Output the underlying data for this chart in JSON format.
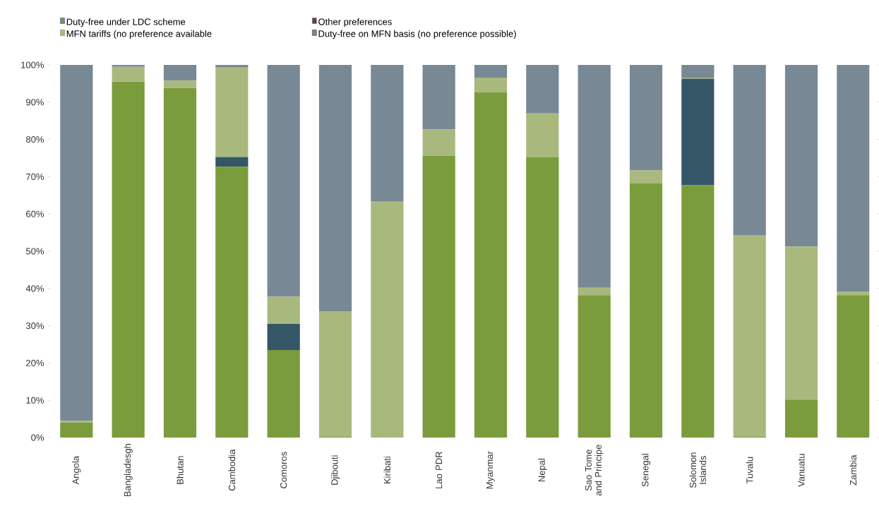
{
  "chart_data": {
    "type": "bar",
    "stacked": true,
    "categories": [
      "Angola",
      "Bangladesgh",
      "Bhutan",
      "Cambodia",
      "Comoros",
      "Djibouti",
      "Kiribati",
      "Lao PDR",
      "Myanmar",
      "Nepal",
      "Sao Tome and Principe",
      "Senegal",
      "Solomon Islands",
      "Tuvalu",
      "Vanuatu",
      "Zambia"
    ],
    "series": [
      {
        "name": "Duty-free under LDC scheme",
        "color": "#7a9c3c",
        "values": [
          4,
          95.5,
          93.8,
          72.7,
          23.5,
          0.3,
          0,
          75.6,
          92.7,
          75.2,
          38.2,
          68.2,
          67.7,
          0.3,
          10.2,
          38.2
        ]
      },
      {
        "name": "Other preferences",
        "color": "#345667",
        "values": [
          0,
          0,
          0,
          2.6,
          7,
          0,
          0,
          0,
          0,
          0,
          0,
          0,
          28.6,
          0,
          0,
          0
        ]
      },
      {
        "name": "MFN tariffs (no preference available",
        "color": "#a9b97d",
        "values": [
          0.5,
          4,
          2,
          24,
          7.3,
          33.6,
          63.3,
          7.1,
          3.9,
          11.8,
          2,
          3.5,
          0.3,
          53.9,
          41.1,
          1
        ]
      },
      {
        "name": "Duty-free on MFN basis (no preference possible)",
        "color": "#788894",
        "values": [
          95.5,
          0.5,
          4.2,
          0.7,
          62.2,
          66.1,
          36.7,
          17.3,
          3.4,
          13,
          59.8,
          28.3,
          3.4,
          45.8,
          48.7,
          60.8
        ]
      }
    ],
    "ylim": [
      0,
      100
    ],
    "yticks": [
      {
        "value": 0,
        "label": "0%"
      },
      {
        "value": 10,
        "label": "10%"
      },
      {
        "value": 20,
        "label": "20%"
      },
      {
        "value": 30,
        "label": "30%"
      },
      {
        "value": 40,
        "label": "40%"
      },
      {
        "value": 50,
        "label": "50%"
      },
      {
        "value": 60,
        "label": "60%"
      },
      {
        "value": 70,
        "label": "70%"
      },
      {
        "value": 80,
        "label": "80%"
      },
      {
        "value": 90,
        "label": "90%"
      },
      {
        "value": 100,
        "label": "100%"
      }
    ],
    "legend": "top"
  }
}
